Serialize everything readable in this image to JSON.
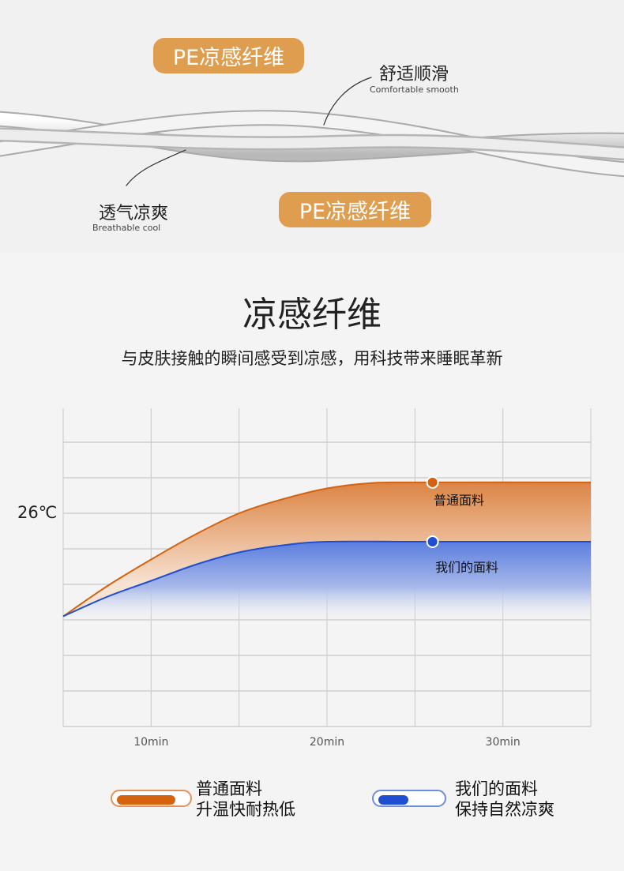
{
  "hero": {
    "pill_top": "PE凉感纤维",
    "pill_bottom": "PE凉感纤维",
    "feature_right": {
      "cn": "舒适顺滑",
      "en": "Comfortable smooth"
    },
    "feature_left": {
      "cn": "透气凉爽",
      "en": "Breathable cool"
    }
  },
  "section": {
    "title": "凉感纤维",
    "subtitle": "与皮肤接触的瞬间感受到凉感，用科技带来睡眠革新"
  },
  "colors": {
    "pill": "#df9d4f",
    "orange": "#d4620f",
    "blue": "#1f4fd0",
    "background": "#f4f4f4"
  },
  "chart_data": {
    "type": "area",
    "title": "",
    "xlabel": "",
    "ylabel": "",
    "x_ticks": [
      {
        "value": 10,
        "label": "10min"
      },
      {
        "value": 20,
        "label": "20min"
      },
      {
        "value": 30,
        "label": "30min"
      }
    ],
    "y_ticks": [
      {
        "value": 26,
        "label": "26℃"
      }
    ],
    "xlim": [
      5,
      35
    ],
    "ylim": [
      20,
      29
    ],
    "grid": true,
    "series": [
      {
        "name": "普通面料",
        "color": "#d4620f",
        "x": [
          5,
          7.5,
          10,
          12.5,
          15,
          17.5,
          20,
          22.5,
          25,
          35
        ],
        "y": [
          23.1,
          23.95,
          24.7,
          25.4,
          26.0,
          26.4,
          26.7,
          26.85,
          26.87,
          26.87
        ],
        "marker_x": 26,
        "label": "普通面料"
      },
      {
        "name": "我们的面料",
        "color": "#1f4fd0",
        "x": [
          5,
          7.5,
          10,
          12.5,
          15,
          17.5,
          20,
          25,
          35
        ],
        "y": [
          23.1,
          23.65,
          24.1,
          24.55,
          24.9,
          25.1,
          25.2,
          25.2,
          25.2
        ],
        "marker_x": 26,
        "label": "我们的面料"
      }
    ]
  },
  "legend": [
    {
      "line1": "普通面料",
      "line2": "升温快耐热低"
    },
    {
      "line1": "我们的面料",
      "line2": "保持自然凉爽"
    }
  ]
}
